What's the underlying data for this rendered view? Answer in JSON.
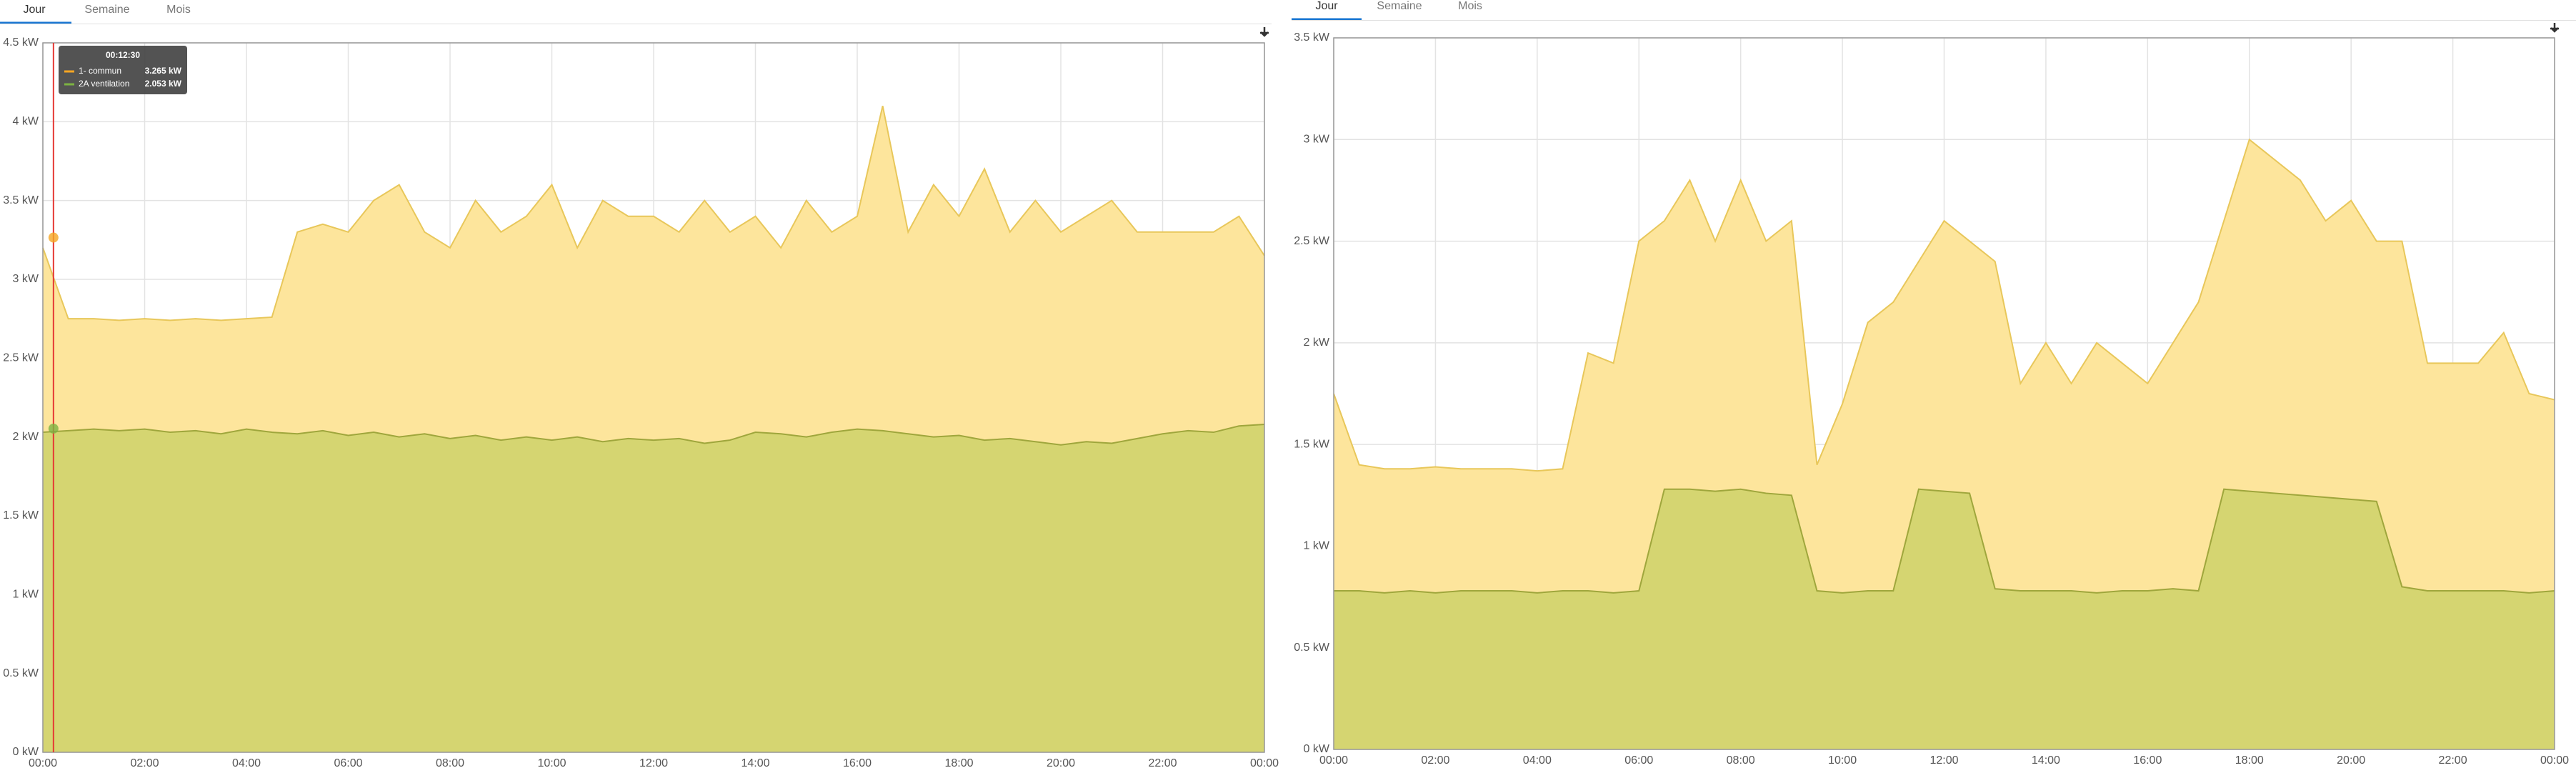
{
  "chart_data": [
    {
      "type": "area",
      "tabs": [
        "Jour",
        "Semaine",
        "Mois"
      ],
      "x": [
        0,
        0.5,
        1,
        1.5,
        2,
        2.5,
        3,
        3.5,
        4,
        4.5,
        5,
        5.5,
        6,
        6.5,
        7,
        7.5,
        8,
        8.5,
        9,
        9.5,
        10,
        10.5,
        11,
        11.5,
        12,
        12.5,
        13,
        13.5,
        14,
        14.5,
        15,
        15.5,
        16,
        16.5,
        17,
        17.5,
        18,
        18.5,
        19,
        19.5,
        20,
        20.5,
        21,
        21.5,
        22,
        22.5,
        23,
        23.5,
        24
      ],
      "series": [
        {
          "name": "1- commun",
          "color": "#e8c75a",
          "fill": "#fde59c",
          "values": [
            3.2,
            2.75,
            2.75,
            2.74,
            2.75,
            2.74,
            2.75,
            2.74,
            2.75,
            2.76,
            3.3,
            3.35,
            3.3,
            3.5,
            3.6,
            3.3,
            3.2,
            3.5,
            3.3,
            3.4,
            3.6,
            3.2,
            3.5,
            3.4,
            3.4,
            3.3,
            3.5,
            3.3,
            3.4,
            3.2,
            3.5,
            3.3,
            3.4,
            4.1,
            3.3,
            3.6,
            3.4,
            3.7,
            3.3,
            3.5,
            3.3,
            3.4,
            3.5,
            3.3,
            3.3,
            3.3,
            3.3,
            3.4,
            3.15
          ]
        },
        {
          "name": "2A ventilation",
          "color": "#9fa63c",
          "fill": "#d3d46f",
          "values": [
            2.03,
            2.04,
            2.05,
            2.04,
            2.05,
            2.03,
            2.04,
            2.02,
            2.05,
            2.03,
            2.02,
            2.04,
            2.01,
            2.03,
            2.0,
            2.02,
            1.99,
            2.01,
            1.98,
            2.0,
            1.98,
            2.0,
            1.97,
            1.99,
            1.98,
            1.99,
            1.96,
            1.98,
            2.03,
            2.02,
            2.0,
            2.03,
            2.05,
            2.04,
            2.02,
            2.0,
            2.01,
            1.98,
            1.99,
            1.97,
            1.95,
            1.97,
            1.96,
            1.99,
            2.02,
            2.04,
            2.03,
            2.07,
            2.08
          ]
        }
      ],
      "ylim": [
        0,
        4.5
      ],
      "yticks": [
        {
          "value": 0,
          "label": "0 kW"
        },
        {
          "value": 0.5,
          "label": "0.5 kW"
        },
        {
          "value": 1,
          "label": "1 kW"
        },
        {
          "value": 1.5,
          "label": "1.5 kW"
        },
        {
          "value": 2,
          "label": "2 kW"
        },
        {
          "value": 2.5,
          "label": "2.5 kW"
        },
        {
          "value": 3,
          "label": "3 kW"
        },
        {
          "value": 3.5,
          "label": "3.5 kW"
        },
        {
          "value": 4,
          "label": "4 kW"
        },
        {
          "value": 4.5,
          "label": "4.5 kW"
        }
      ],
      "xlim": [
        0,
        24
      ],
      "xticks": [
        {
          "value": 0,
          "label": "00:00"
        },
        {
          "value": 2,
          "label": "02:00"
        },
        {
          "value": 4,
          "label": "04:00"
        },
        {
          "value": 6,
          "label": "06:00"
        },
        {
          "value": 8,
          "label": "08:00"
        },
        {
          "value": 10,
          "label": "10:00"
        },
        {
          "value": 12,
          "label": "12:00"
        },
        {
          "value": 14,
          "label": "14:00"
        },
        {
          "value": 16,
          "label": "16:00"
        },
        {
          "value": 18,
          "label": "18:00"
        },
        {
          "value": 20,
          "label": "20:00"
        },
        {
          "value": 22,
          "label": "22:00"
        },
        {
          "value": 24,
          "label": "00:00"
        }
      ],
      "grid": true,
      "tooltip": {
        "x": 0.2083,
        "label": "00:12:30",
        "items": [
          {
            "name": "1- commun",
            "value": 3.265,
            "label": "3.265 kW",
            "color": "#f5a623"
          },
          {
            "name": "2A ventilation",
            "value": 2.053,
            "label": "2.053 kW",
            "color": "#7cb342"
          }
        ]
      }
    },
    {
      "type": "area",
      "tabs": [
        "Jour",
        "Semaine",
        "Mois"
      ],
      "x": [
        0,
        0.5,
        1,
        1.5,
        2,
        2.5,
        3,
        3.5,
        4,
        4.5,
        5,
        5.5,
        6,
        6.5,
        7,
        7.5,
        8,
        8.5,
        9,
        9.5,
        10,
        10.5,
        11,
        11.5,
        12,
        12.5,
        13,
        13.5,
        14,
        14.5,
        15,
        15.5,
        16,
        16.5,
        17,
        17.5,
        18,
        18.5,
        19,
        19.5,
        20,
        20.5,
        21,
        21.5,
        22,
        22.5,
        23,
        23.5,
        24
      ],
      "series": [
        {
          "name": "1- commun",
          "color": "#e8c75a",
          "fill": "#fde59c",
          "values": [
            1.75,
            1.4,
            1.38,
            1.38,
            1.39,
            1.38,
            1.38,
            1.38,
            1.37,
            1.38,
            1.95,
            1.9,
            2.5,
            2.6,
            2.8,
            2.5,
            2.8,
            2.5,
            2.6,
            1.4,
            1.7,
            2.1,
            2.2,
            2.4,
            2.6,
            2.5,
            2.4,
            1.8,
            2.0,
            1.8,
            2.0,
            1.9,
            1.8,
            2.0,
            2.2,
            2.6,
            3.0,
            2.9,
            2.8,
            2.6,
            2.7,
            2.5,
            2.5,
            1.9,
            1.9,
            1.9,
            2.05,
            1.75,
            1.72
          ]
        },
        {
          "name": "2A ventilation",
          "color": "#9fa63c",
          "fill": "#d3d46f",
          "values": [
            0.78,
            0.78,
            0.77,
            0.78,
            0.77,
            0.78,
            0.78,
            0.78,
            0.77,
            0.78,
            0.78,
            0.77,
            0.78,
            1.28,
            1.28,
            1.27,
            1.28,
            1.26,
            1.25,
            0.78,
            0.77,
            0.78,
            0.78,
            1.28,
            1.27,
            1.26,
            0.79,
            0.78,
            0.78,
            0.78,
            0.77,
            0.78,
            0.78,
            0.79,
            0.78,
            1.28,
            1.27,
            1.26,
            1.25,
            1.24,
            1.23,
            1.22,
            0.8,
            0.78,
            0.78,
            0.78,
            0.78,
            0.77,
            0.78
          ]
        }
      ],
      "ylim": [
        0,
        3.5
      ],
      "yticks": [
        {
          "value": 0,
          "label": "0 kW"
        },
        {
          "value": 0.5,
          "label": "0.5 kW"
        },
        {
          "value": 1,
          "label": "1 kW"
        },
        {
          "value": 1.5,
          "label": "1.5 kW"
        },
        {
          "value": 2,
          "label": "2 kW"
        },
        {
          "value": 2.5,
          "label": "2.5 kW"
        },
        {
          "value": 3,
          "label": "3 kW"
        },
        {
          "value": 3.5,
          "label": "3.5 kW"
        }
      ],
      "xlim": [
        0,
        24
      ],
      "xticks": [
        {
          "value": 0,
          "label": "00:00"
        },
        {
          "value": 2,
          "label": "02:00"
        },
        {
          "value": 4,
          "label": "04:00"
        },
        {
          "value": 6,
          "label": "06:00"
        },
        {
          "value": 8,
          "label": "08:00"
        },
        {
          "value": 10,
          "label": "10:00"
        },
        {
          "value": 12,
          "label": "12:00"
        },
        {
          "value": 14,
          "label": "14:00"
        },
        {
          "value": 16,
          "label": "16:00"
        },
        {
          "value": 18,
          "label": "18:00"
        },
        {
          "value": 20,
          "label": "20:00"
        },
        {
          "value": 22,
          "label": "22:00"
        },
        {
          "value": 24,
          "label": "00:00"
        }
      ],
      "grid": true
    }
  ]
}
